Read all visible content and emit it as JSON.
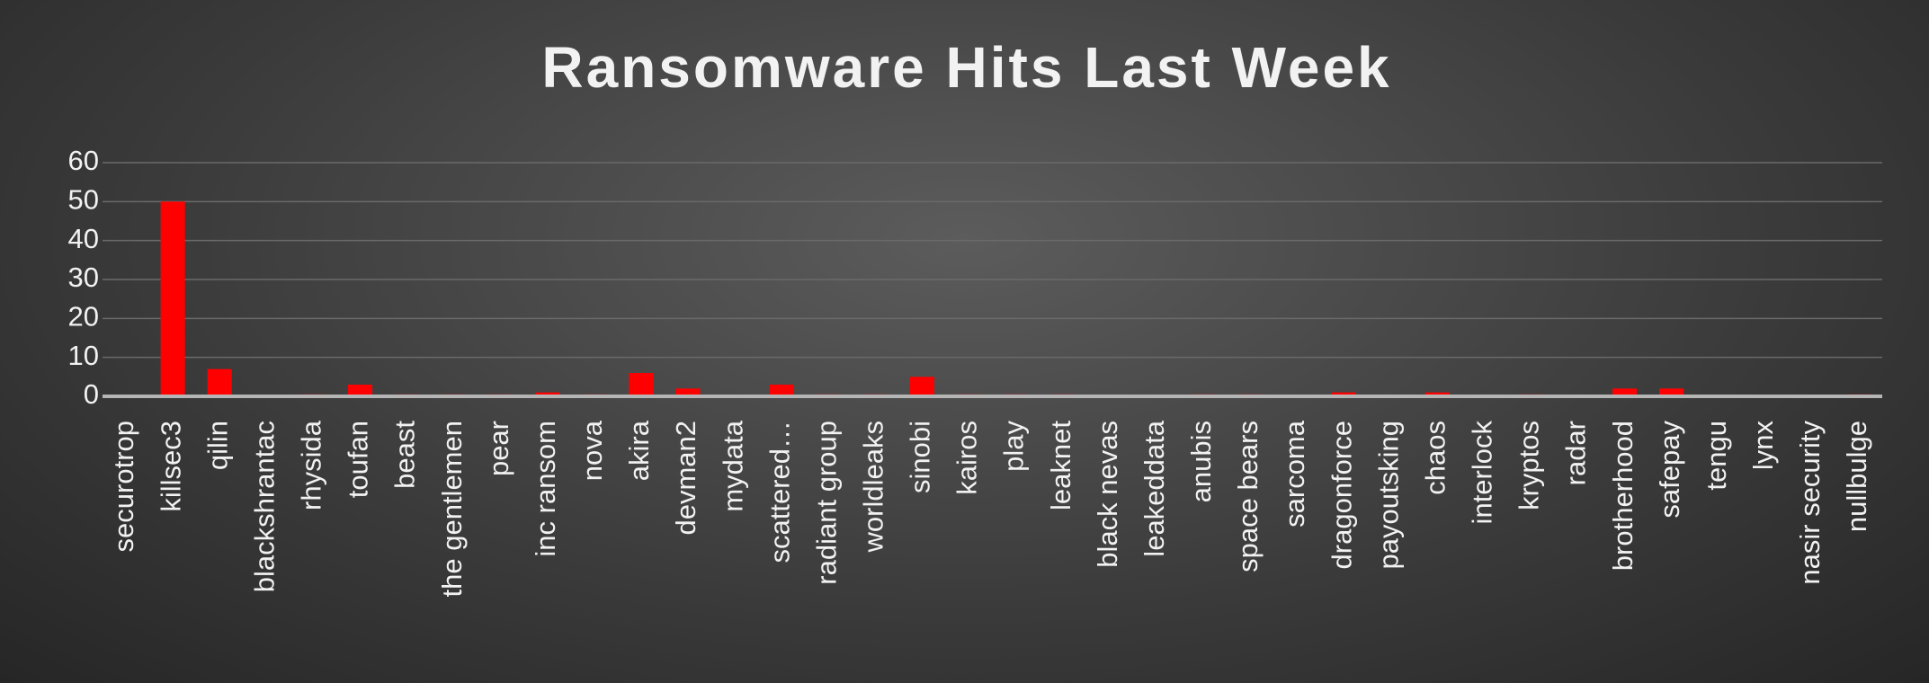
{
  "chart_data": {
    "type": "bar",
    "title": "Ransomware Hits Last Week",
    "categories": [
      "securotrop",
      "killsec3",
      "qilin",
      "blackshrantac",
      "rhysida",
      "toufan",
      "beast",
      "the gentlemen",
      "pear",
      "inc ransom",
      "nova",
      "akira",
      "devman2",
      "mydata",
      "scattered…",
      "radiant group",
      "worldleaks",
      "sinobi",
      "kairos",
      "play",
      "leaknet",
      "black nevas",
      "leakeddata",
      "anubis",
      "space bears",
      "sarcoma",
      "dragonforce",
      "payoutsking",
      "chaos",
      "interlock",
      "kryptos",
      "radar",
      "brotherhood",
      "safepay",
      "tengu",
      "lynx",
      "nasir security",
      "nullbulge"
    ],
    "values": [
      0,
      50,
      7,
      0,
      0.5,
      3,
      0.5,
      0.5,
      0.5,
      1,
      0.5,
      6,
      2,
      0,
      3,
      0.5,
      0.5,
      5,
      0.5,
      0.5,
      0.5,
      0,
      0,
      0.5,
      0.5,
      0,
      1,
      0,
      1,
      0,
      0.5,
      0,
      2,
      2,
      0,
      0,
      0,
      0.5
    ],
    "color": "#ff0000",
    "ylim": [
      0,
      60
    ],
    "yticks": [
      0,
      10,
      20,
      30,
      40,
      50,
      60
    ],
    "grid": true
  }
}
